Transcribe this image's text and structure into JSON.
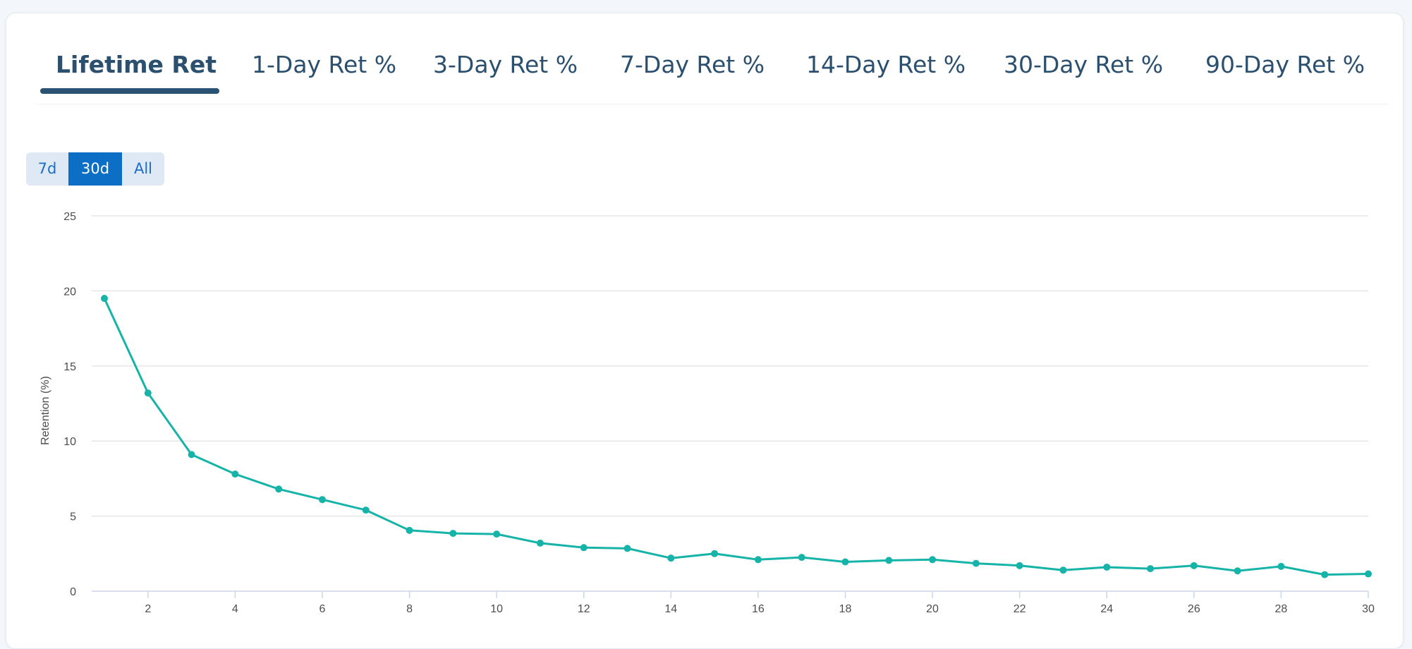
{
  "tabs": [
    {
      "label": "Lifetime Ret",
      "active": true
    },
    {
      "label": "1-Day Ret %",
      "active": false
    },
    {
      "label": "3-Day Ret %",
      "active": false
    },
    {
      "label": "7-Day Ret %",
      "active": false
    },
    {
      "label": "14-Day Ret %",
      "active": false
    },
    {
      "label": "30-Day Ret %",
      "active": false
    },
    {
      "label": "90-Day Ret %",
      "active": false
    }
  ],
  "range_selector": {
    "options": [
      "7d",
      "30d",
      "All"
    ],
    "selected": "30d"
  },
  "colors": {
    "series": "#16b3a8",
    "tab_text": "#2b4f6e",
    "range_selected": "#0c6fc5"
  },
  "chart_data": {
    "type": "line",
    "title": "",
    "xlabel": "",
    "ylabel": "Retention (%)",
    "xlim": [
      1,
      30
    ],
    "ylim": [
      0,
      25
    ],
    "x_ticks": [
      2,
      4,
      6,
      8,
      10,
      12,
      14,
      16,
      18,
      20,
      22,
      24,
      26,
      28,
      30
    ],
    "y_ticks": [
      0,
      5,
      10,
      15,
      20,
      25
    ],
    "grid": "horizontal",
    "legend": "none",
    "x": [
      1,
      2,
      3,
      4,
      5,
      6,
      7,
      8,
      9,
      10,
      11,
      12,
      13,
      14,
      15,
      16,
      17,
      18,
      19,
      20,
      21,
      22,
      23,
      24,
      25,
      26,
      27,
      28,
      29,
      30
    ],
    "series": [
      {
        "values": [
          19.5,
          13.2,
          9.1,
          7.8,
          6.8,
          6.1,
          5.4,
          4.05,
          3.85,
          3.8,
          3.2,
          2.9,
          2.85,
          2.2,
          2.5,
          2.1,
          2.25,
          1.95,
          2.05,
          2.1,
          1.85,
          1.7,
          1.4,
          1.6,
          1.5,
          1.7,
          1.35,
          1.65,
          1.1,
          1.15
        ]
      }
    ]
  }
}
